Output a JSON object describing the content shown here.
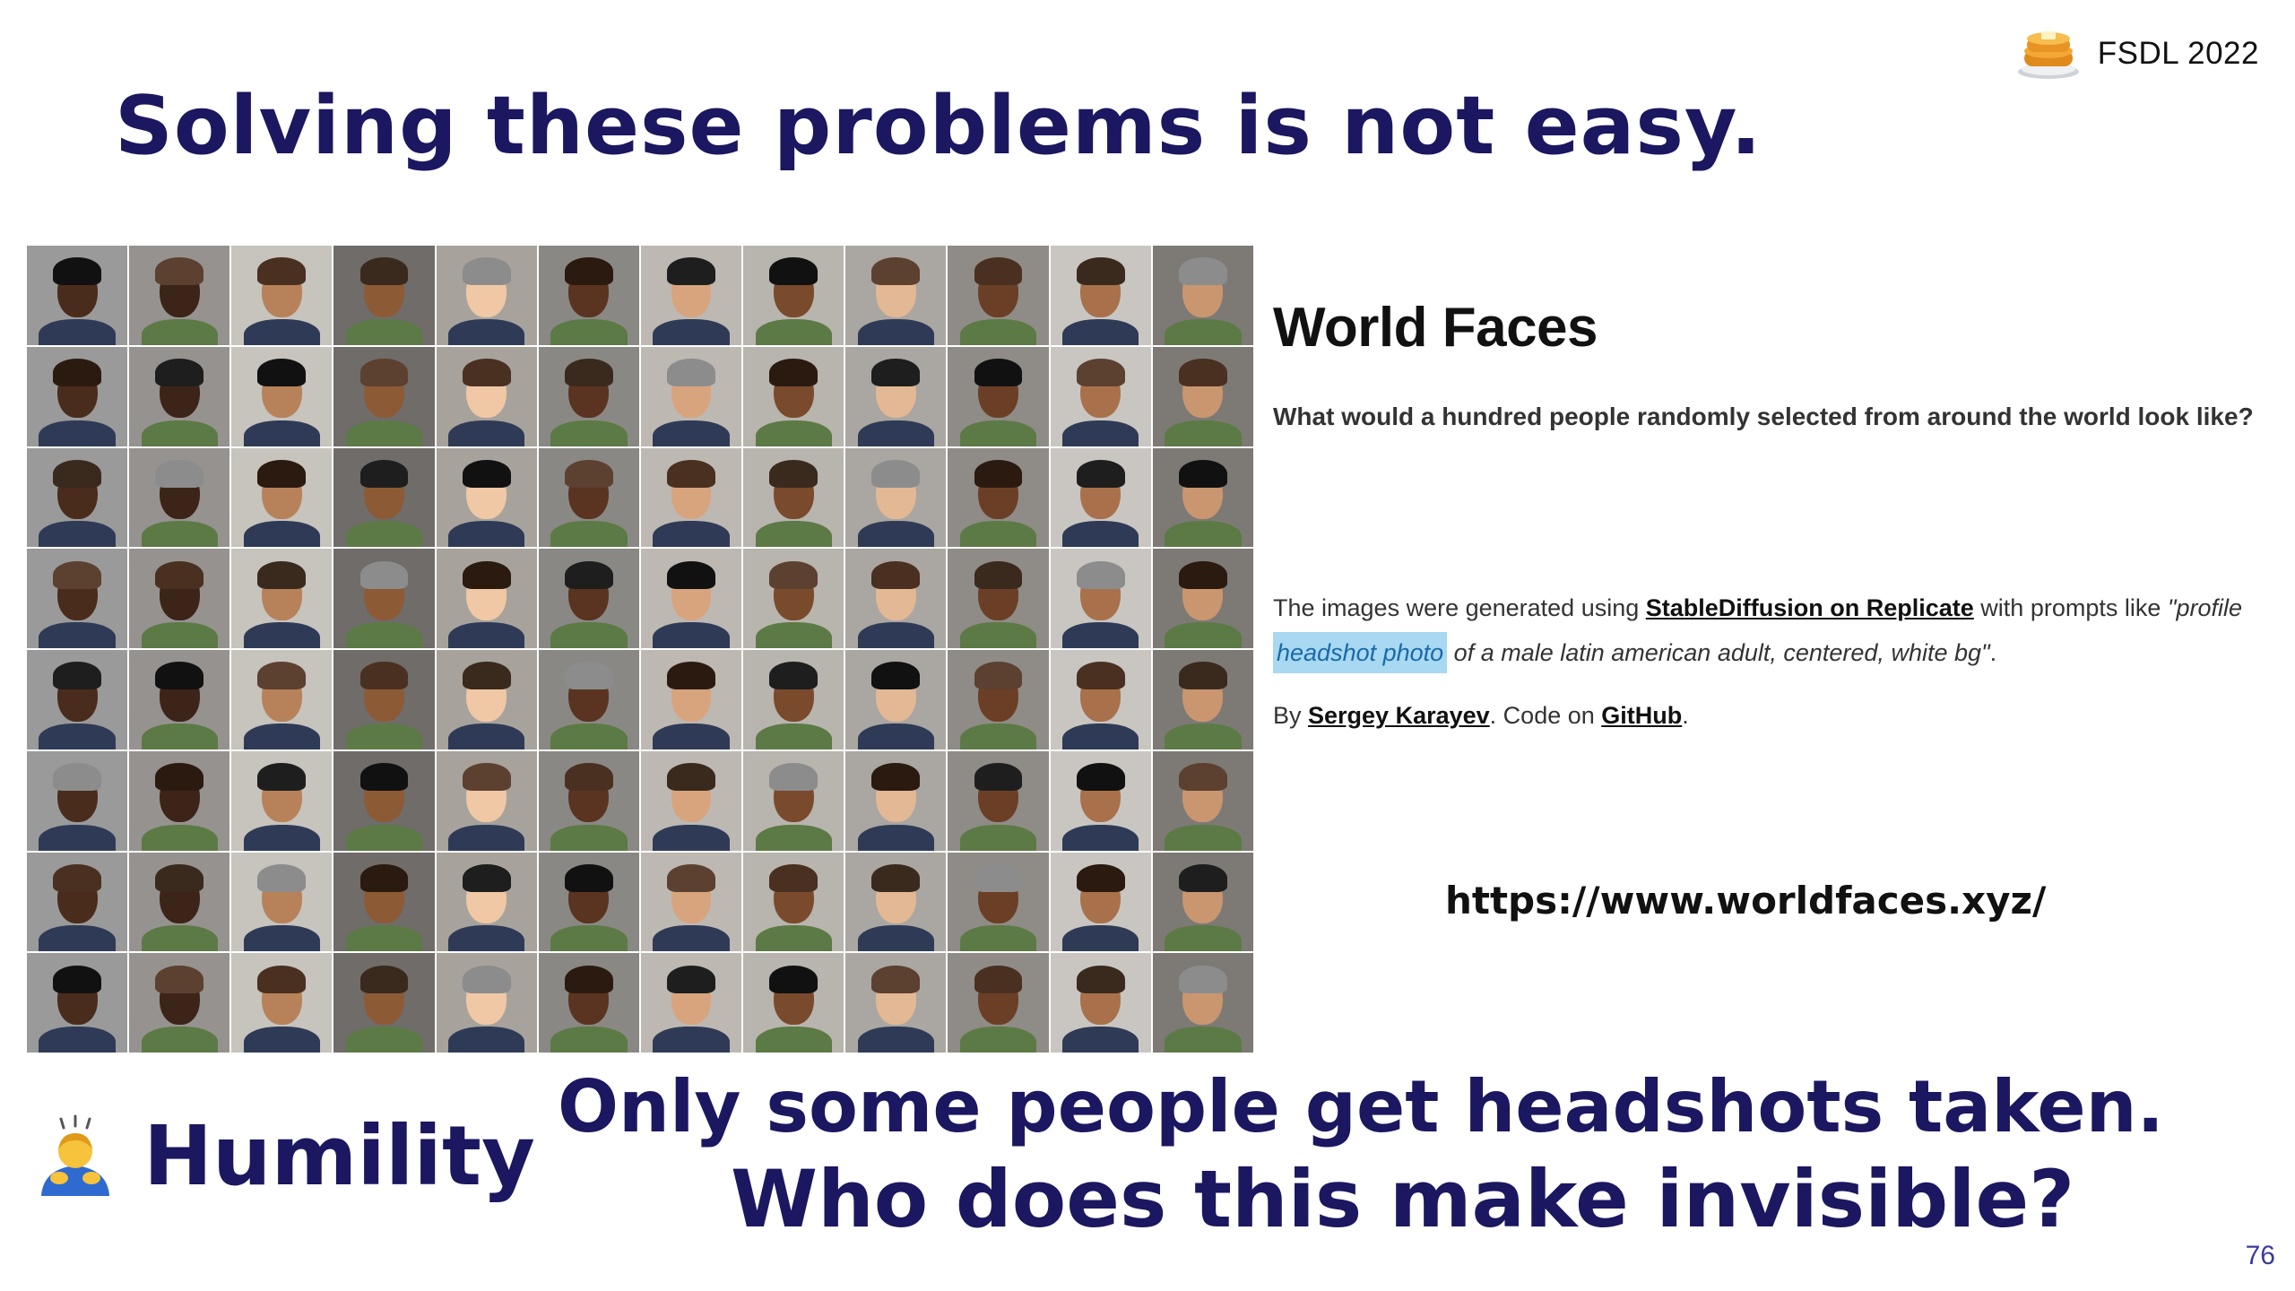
{
  "brand": {
    "text": "FSDL 2022",
    "icon": "pancake-stack-icon"
  },
  "title": "Solving these problems is not easy.",
  "site": {
    "title": "World Faces",
    "question": "What would a hundred people randomly selected from around the world look like?",
    "desc_prefix": "The images were generated using ",
    "desc_link": "StableDiffusion on Replicate",
    "desc_mid": " with prompts like ",
    "desc_quote_start": "\"profile ",
    "desc_highlight": "headshot photo",
    "desc_quote_end": " of a male latin american adult, centered, white bg\"",
    "desc_end": ".",
    "by_prefix": "By ",
    "by_author": "Sergey Karayev",
    "by_mid": ". Code on ",
    "by_code": "GitHub",
    "by_end": "."
  },
  "url": "https://www.worldfaces.xyz/",
  "humility": {
    "label": "Humility",
    "icon": "person-bowing-icon"
  },
  "line1": "Only some people get headshots taken.",
  "line2": "Who does this make invisible?",
  "page_number": "76",
  "face_grid": {
    "rows": 8,
    "columns": 12,
    "count": 96
  }
}
